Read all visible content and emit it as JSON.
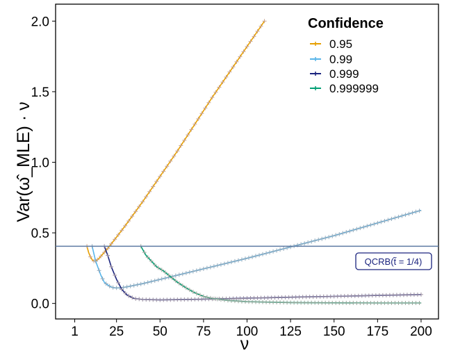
{
  "chart_data": {
    "type": "line",
    "xlabel": "ν",
    "ylabel": "Var(ω̂_MLE) · ν",
    "xlim": [
      -10,
      210
    ],
    "ylim": [
      -0.11,
      2.12
    ],
    "x_ticks": [
      1,
      25,
      50,
      75,
      100,
      125,
      150,
      175,
      200
    ],
    "y_ticks": [
      0.0,
      0.5,
      1.0,
      1.5,
      2.0
    ],
    "x_tick_labels": [
      "1",
      "25",
      "50",
      "75",
      "100",
      "125",
      "150",
      "175",
      "200"
    ],
    "y_tick_labels": [
      "0.0",
      "0.5",
      "1.0",
      "1.5",
      "2.0"
    ],
    "grid": false,
    "legend": {
      "title": "Confidence",
      "position": "top-right"
    },
    "series": [
      {
        "name": "0.95",
        "color": "#E69F00",
        "marker_color": "#c9a38a",
        "points": [
          [
            8,
            0.405
          ],
          [
            9,
            0.36
          ],
          [
            10,
            0.33
          ],
          [
            11,
            0.31
          ],
          [
            12,
            0.3
          ],
          [
            13,
            0.3
          ],
          [
            15,
            0.32
          ],
          [
            20,
            0.39
          ],
          [
            25,
            0.47
          ],
          [
            30,
            0.55
          ],
          [
            40,
            0.72
          ],
          [
            50,
            0.9
          ],
          [
            60,
            1.08
          ],
          [
            70,
            1.27
          ],
          [
            80,
            1.46
          ],
          [
            90,
            1.64
          ],
          [
            100,
            1.82
          ],
          [
            110,
            2.0
          ]
        ]
      },
      {
        "name": "0.99",
        "color": "#56B4E9",
        "marker_color": "#8fa6b8",
        "points": [
          [
            11,
            0.405
          ],
          [
            13,
            0.3
          ],
          [
            16,
            0.2
          ],
          [
            18,
            0.15
          ],
          [
            20,
            0.13
          ],
          [
            22,
            0.115
          ],
          [
            24,
            0.11
          ],
          [
            26,
            0.11
          ],
          [
            30,
            0.115
          ],
          [
            40,
            0.14
          ],
          [
            50,
            0.17
          ],
          [
            75,
            0.245
          ],
          [
            100,
            0.32
          ],
          [
            125,
            0.4
          ],
          [
            150,
            0.48
          ],
          [
            175,
            0.57
          ],
          [
            200,
            0.66
          ]
        ]
      },
      {
        "name": "0.999",
        "color": "#1a237e",
        "marker_color": "#9a8ea0",
        "points": [
          [
            18,
            0.405
          ],
          [
            20,
            0.34
          ],
          [
            22,
            0.26
          ],
          [
            25,
            0.17
          ],
          [
            28,
            0.1
          ],
          [
            31,
            0.06
          ],
          [
            35,
            0.035
          ],
          [
            40,
            0.028
          ],
          [
            50,
            0.025
          ],
          [
            75,
            0.03
          ],
          [
            100,
            0.037
          ],
          [
            125,
            0.044
          ],
          [
            150,
            0.05
          ],
          [
            175,
            0.057
          ],
          [
            200,
            0.063
          ]
        ]
      },
      {
        "name": "0.999999",
        "color": "#009E73",
        "marker_color": "#9aa59a",
        "points": [
          [
            39,
            0.405
          ],
          [
            42,
            0.34
          ],
          [
            45,
            0.3
          ],
          [
            48,
            0.26
          ],
          [
            52,
            0.23
          ],
          [
            56,
            0.19
          ],
          [
            60,
            0.15
          ],
          [
            65,
            0.11
          ],
          [
            70,
            0.075
          ],
          [
            75,
            0.05
          ],
          [
            80,
            0.035
          ],
          [
            90,
            0.02
          ],
          [
            100,
            0.012
          ],
          [
            125,
            0.006
          ],
          [
            150,
            0.004
          ],
          [
            175,
            0.003
          ],
          [
            200,
            0.003
          ]
        ]
      },
      {
        "name": "QCRB",
        "color": "#5c7aa3",
        "marker_color": "#5c7aa3",
        "points": [
          [
            -10,
            0.405
          ],
          [
            210,
            0.405
          ]
        ]
      }
    ],
    "annotation": {
      "text": "QCRB(t̃ = 1/4)",
      "x": 187,
      "y": 0.3,
      "color": "#1a237e"
    }
  }
}
